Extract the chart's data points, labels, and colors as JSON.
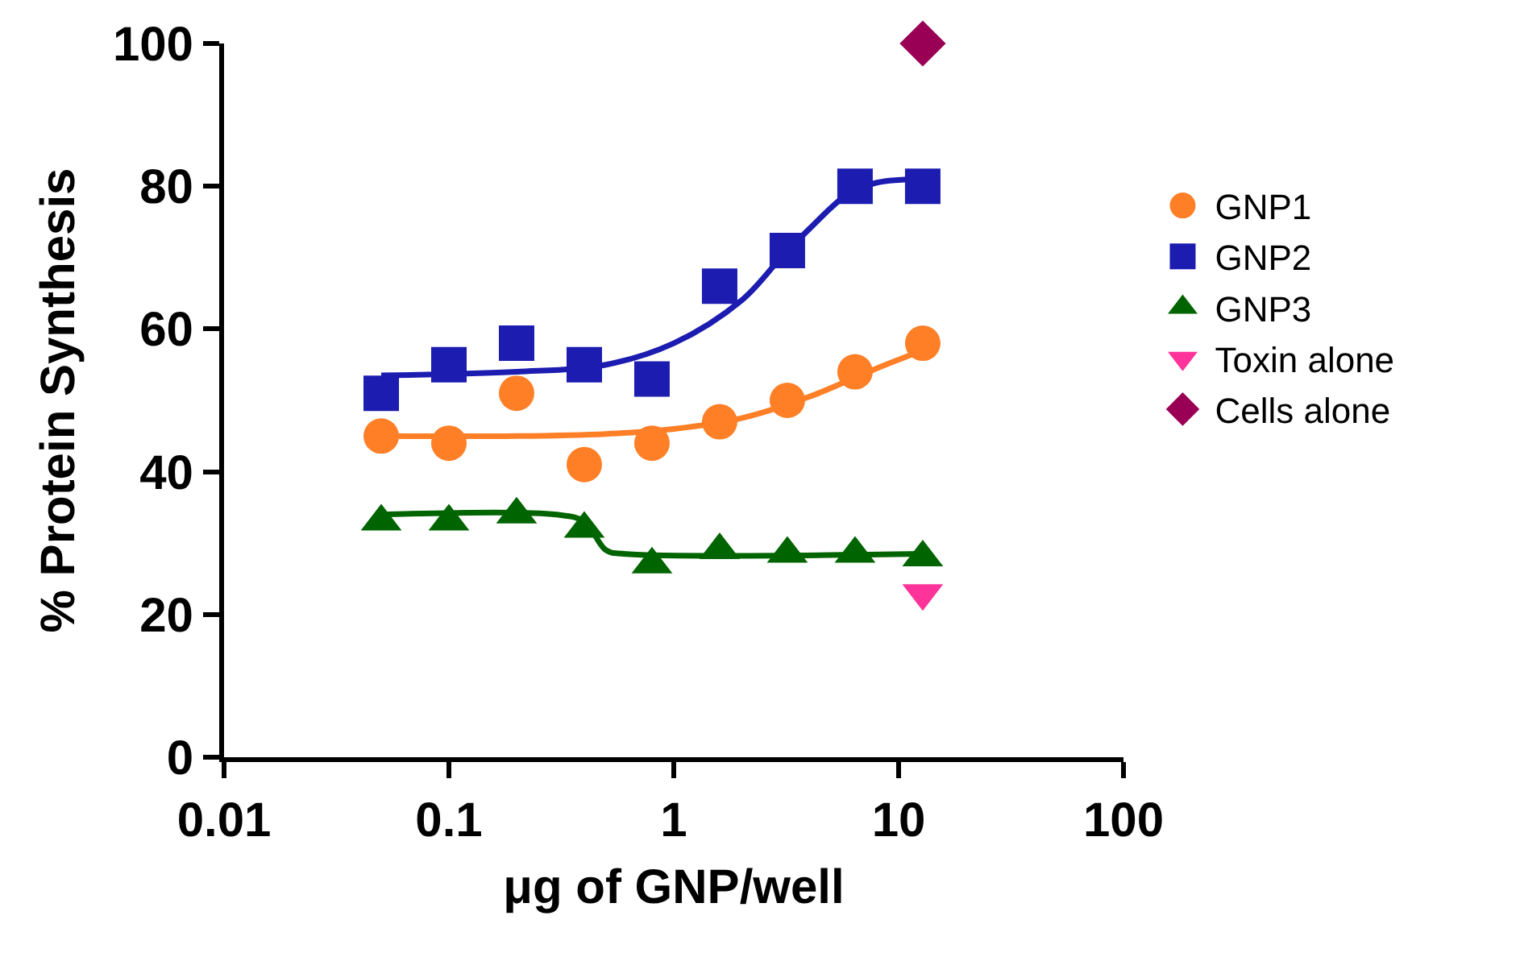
{
  "chart_data": {
    "type": "scatter",
    "xlabel": "μg of GNP/well",
    "ylabel": "% Protein Synthesis",
    "log": "x",
    "xlim": [
      0.01,
      100
    ],
    "xticks": [
      0.01,
      0.1,
      1,
      10,
      100
    ],
    "ylim": [
      0,
      100
    ],
    "yticks": [
      0,
      20,
      40,
      60,
      80,
      100
    ],
    "legend": "right",
    "series": [
      {
        "name": "GNP1",
        "color": "#ff7f27",
        "marker": "circle",
        "x": [
          0.05,
          0.1,
          0.2,
          0.4,
          0.8,
          1.6,
          3.2,
          6.4,
          12.8
        ],
        "values": [
          45,
          44,
          51,
          41,
          44,
          47,
          50,
          54,
          58
        ]
      },
      {
        "name": "GNP2",
        "color": "#1c1cb0",
        "marker": "square",
        "x": [
          0.05,
          0.1,
          0.2,
          0.4,
          0.8,
          1.6,
          3.2,
          6.4,
          12.8
        ],
        "values": [
          51,
          55,
          58,
          55,
          53,
          66,
          71,
          80,
          80
        ]
      },
      {
        "name": "GNP3",
        "color": "#006400",
        "marker": "triangle",
        "x": [
          0.05,
          0.1,
          0.2,
          0.4,
          0.8,
          1.6,
          3.2,
          6.4,
          12.8
        ],
        "values": [
          33,
          33,
          34,
          32,
          27,
          29,
          28.5,
          28.5,
          28
        ]
      },
      {
        "name": "Toxin alone",
        "color": "#ff3399",
        "marker": "triangle-down",
        "x": [
          12.8
        ],
        "values": [
          23
        ]
      },
      {
        "name": "Cells alone",
        "color": "#990055",
        "marker": "diamond",
        "x": [
          12.8
        ],
        "values": [
          100
        ]
      },
      {
        "type": "line",
        "color": "#ff7f27",
        "x": [
          0.05,
          0.2,
          0.5,
          1,
          2,
          4,
          8,
          12.8
        ],
        "values": [
          45,
          45,
          45.3,
          46,
          47.5,
          50.5,
          54.5,
          57
        ]
      },
      {
        "type": "line",
        "color": "#1c1cb0",
        "x": [
          0.05,
          0.2,
          0.5,
          1,
          2,
          3,
          4,
          6,
          8,
          12.8
        ],
        "values": [
          53.5,
          54,
          55,
          58,
          64,
          70,
          74,
          79,
          80.5,
          81
        ]
      },
      {
        "type": "line",
        "color": "#006400",
        "x": [
          0.05,
          0.3,
          0.4,
          0.5,
          0.6,
          12.8
        ],
        "values": [
          34,
          34,
          33,
          29,
          28.5,
          28.5
        ]
      }
    ]
  }
}
